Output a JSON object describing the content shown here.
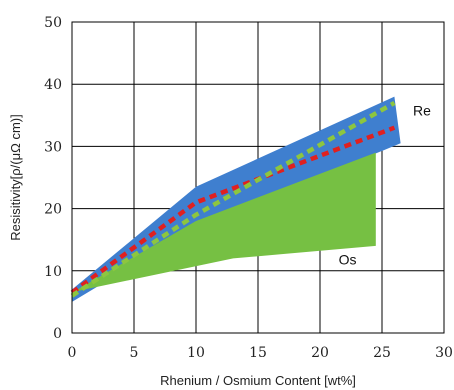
{
  "chart_data": {
    "type": "area",
    "title": "",
    "xlabel": "Rhenium / Osmium Content [wt%]",
    "ylabel": "Resisitivity[ρ/(μΩ cm)]",
    "xlim": [
      0,
      30
    ],
    "ylim": [
      0,
      50
    ],
    "xticks": [
      0,
      5,
      10,
      15,
      20,
      25,
      30
    ],
    "yticks": [
      0,
      10,
      20,
      30,
      40,
      50
    ],
    "grid": true,
    "colors": {
      "re_band": "#3f7fcf",
      "os_band": "#76c043",
      "red_line": "#e02020",
      "green_line": "#8dc63f"
    },
    "series": [
      {
        "name": "Re",
        "kind": "band",
        "upper": [
          [
            0,
            7
          ],
          [
            10,
            23.5
          ],
          [
            26,
            38
          ]
        ],
        "lower": [
          [
            0,
            5
          ],
          [
            10,
            17
          ],
          [
            26.5,
            30.5
          ]
        ]
      },
      {
        "name": "Os",
        "kind": "band",
        "upper": [
          [
            0,
            6.5
          ],
          [
            10,
            18
          ],
          [
            24.5,
            29
          ]
        ],
        "lower": [
          [
            1,
            7
          ],
          [
            13,
            12
          ],
          [
            24.5,
            14
          ]
        ]
      },
      {
        "kind": "line",
        "style": "dashed-red",
        "points": [
          [
            0,
            6.5
          ],
          [
            10,
            21
          ],
          [
            26,
            33
          ]
        ]
      },
      {
        "kind": "line",
        "style": "dashed-green",
        "points": [
          [
            0,
            6
          ],
          [
            10,
            19
          ],
          [
            26,
            37
          ]
        ]
      }
    ],
    "annotations": [
      {
        "text": "Re",
        "x": 27.5,
        "y": 35
      },
      {
        "text": "Os",
        "x": 21.5,
        "y": 11
      }
    ]
  }
}
